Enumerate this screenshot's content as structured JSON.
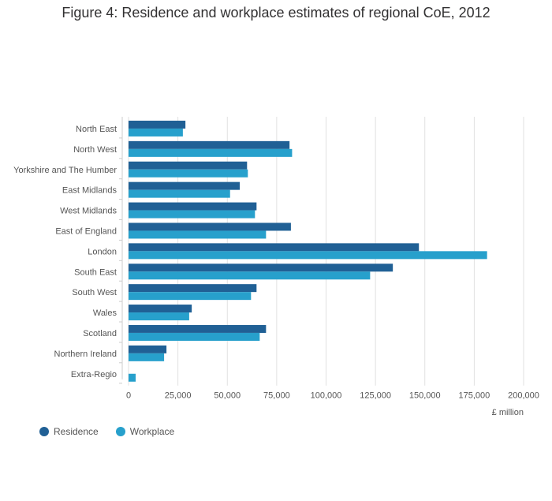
{
  "chart_data": {
    "type": "bar",
    "orientation": "horizontal",
    "title": "Figure 4: Residence and workplace estimates of regional CoE, 2012",
    "xlabel": "£ million",
    "ylabel": "",
    "xlim": [
      0,
      200000
    ],
    "x_ticks": [
      0,
      25000,
      50000,
      75000,
      100000,
      125000,
      150000,
      175000,
      200000
    ],
    "x_tick_labels": [
      "0",
      "25,000",
      "50,000",
      "75,000",
      "100,000",
      "125,000",
      "150,000",
      "175,000",
      "200,000"
    ],
    "grid": true,
    "legend_position": "bottom-left",
    "categories": [
      "North East",
      "North West",
      "Yorkshire and The Humber",
      "East Midlands",
      "West Midlands",
      "East of England",
      "London",
      "South East",
      "South West",
      "Wales",
      "Scotland",
      "Northern Ireland",
      "Extra-Regio"
    ],
    "series": [
      {
        "name": "Residence",
        "color": "#206095",
        "values": [
          28800,
          81500,
          60000,
          56300,
          64800,
          82200,
          147000,
          133800,
          64800,
          32000,
          69600,
          19200,
          0
        ]
      },
      {
        "name": "Workplace",
        "color": "#27a0cc",
        "values": [
          27500,
          82800,
          60400,
          51400,
          64000,
          69600,
          181500,
          122300,
          62000,
          30700,
          66400,
          18000,
          3600
        ]
      }
    ]
  }
}
